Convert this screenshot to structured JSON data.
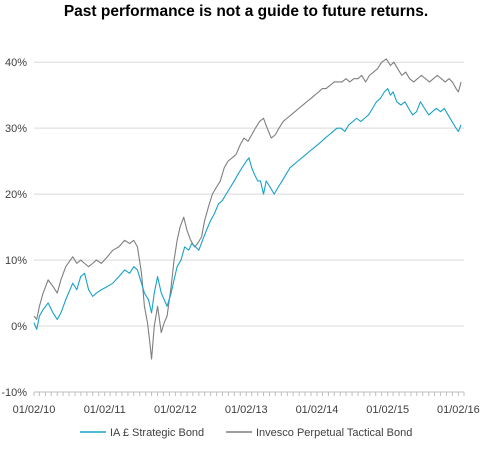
{
  "chart_data": {
    "type": "line",
    "title": "Past performance is not a guide to future returns.",
    "xlabel": "",
    "ylabel": "",
    "y_unit": "%",
    "ylim": [
      -10,
      42
    ],
    "xlim": [
      "2010-02-01",
      "2016-03-01"
    ],
    "y_ticks": [
      "-10%",
      "0%",
      "10%",
      "20%",
      "30%",
      "40%"
    ],
    "x_ticks": [
      "01/02/10",
      "01/02/11",
      "01/02/12",
      "01/02/13",
      "01/02/14",
      "01/02/15",
      "01/02/16"
    ],
    "grid": "horizontal",
    "legend_position": "bottom",
    "series": [
      {
        "name": "IA £ Strategic Bond",
        "color": "#17a2c8",
        "points": [
          [
            "2010-02-01",
            0.5
          ],
          [
            "2010-02-15",
            -0.5
          ],
          [
            "2010-03-01",
            1.5
          ],
          [
            "2010-03-20",
            2.5
          ],
          [
            "2010-04-15",
            3.5
          ],
          [
            "2010-05-10",
            2.0
          ],
          [
            "2010-06-01",
            1.0
          ],
          [
            "2010-06-20",
            2.0
          ],
          [
            "2010-07-15",
            4.0
          ],
          [
            "2010-08-20",
            6.5
          ],
          [
            "2010-09-10",
            5.5
          ],
          [
            "2010-09-30",
            7.5
          ],
          [
            "2010-10-20",
            8.0
          ],
          [
            "2010-11-10",
            5.5
          ],
          [
            "2010-12-01",
            4.5
          ],
          [
            "2010-12-20",
            5.0
          ],
          [
            "2011-01-15",
            5.5
          ],
          [
            "2011-02-15",
            6.0
          ],
          [
            "2011-03-15",
            6.5
          ],
          [
            "2011-04-15",
            7.5
          ],
          [
            "2011-05-15",
            8.5
          ],
          [
            "2011-06-10",
            8.0
          ],
          [
            "2011-07-01",
            9.0
          ],
          [
            "2011-07-20",
            8.5
          ],
          [
            "2011-08-10",
            6.5
          ],
          [
            "2011-08-25",
            5.0
          ],
          [
            "2011-09-15",
            4.0
          ],
          [
            "2011-10-01",
            2.0
          ],
          [
            "2011-10-15",
            5.0
          ],
          [
            "2011-11-01",
            7.5
          ],
          [
            "2011-11-20",
            5.0
          ],
          [
            "2011-12-05",
            4.0
          ],
          [
            "2011-12-20",
            3.0
          ],
          [
            "2012-01-10",
            5.0
          ],
          [
            "2012-01-25",
            7.0
          ],
          [
            "2012-02-10",
            9.0
          ],
          [
            "2012-03-01",
            10.0
          ],
          [
            "2012-03-20",
            12.0
          ],
          [
            "2012-04-10",
            11.5
          ],
          [
            "2012-04-25",
            12.5
          ],
          [
            "2012-05-15",
            12.0
          ],
          [
            "2012-06-01",
            11.5
          ],
          [
            "2012-06-20",
            13.0
          ],
          [
            "2012-07-10",
            14.5
          ],
          [
            "2012-08-01",
            16.0
          ],
          [
            "2012-08-20",
            17.0
          ],
          [
            "2012-09-10",
            18.5
          ],
          [
            "2012-09-30",
            19.0
          ],
          [
            "2012-10-20",
            20.0
          ],
          [
            "2012-11-10",
            21.0
          ],
          [
            "2012-12-01",
            22.0
          ],
          [
            "2012-12-20",
            23.0
          ],
          [
            "2013-01-10",
            24.0
          ],
          [
            "2013-02-01",
            25.0
          ],
          [
            "2013-02-15",
            25.5
          ],
          [
            "2013-03-01",
            24.0
          ],
          [
            "2013-03-15",
            23.0
          ],
          [
            "2013-04-01",
            22.0
          ],
          [
            "2013-04-15",
            22.0
          ],
          [
            "2013-05-01",
            20.0
          ],
          [
            "2013-05-15",
            22.0
          ],
          [
            "2013-06-05",
            21.0
          ],
          [
            "2013-06-25",
            20.0
          ],
          [
            "2013-07-15",
            21.0
          ],
          [
            "2013-08-05",
            22.0
          ],
          [
            "2013-08-25",
            23.0
          ],
          [
            "2013-09-15",
            24.0
          ],
          [
            "2013-10-05",
            24.5
          ],
          [
            "2013-10-25",
            25.0
          ],
          [
            "2013-11-15",
            25.5
          ],
          [
            "2013-12-05",
            26.0
          ],
          [
            "2013-12-25",
            26.5
          ],
          [
            "2014-01-15",
            27.0
          ],
          [
            "2014-02-05",
            27.5
          ],
          [
            "2014-02-25",
            28.0
          ],
          [
            "2014-03-15",
            28.5
          ],
          [
            "2014-04-05",
            29.0
          ],
          [
            "2014-04-25",
            29.5
          ],
          [
            "2014-05-15",
            30.0
          ],
          [
            "2014-06-05",
            30.0
          ],
          [
            "2014-06-25",
            29.5
          ],
          [
            "2014-07-15",
            30.5
          ],
          [
            "2014-08-05",
            31.0
          ],
          [
            "2014-08-25",
            31.5
          ],
          [
            "2014-09-15",
            31.0
          ],
          [
            "2014-10-05",
            31.5
          ],
          [
            "2014-10-25",
            32.0
          ],
          [
            "2014-11-15",
            33.0
          ],
          [
            "2014-12-05",
            34.0
          ],
          [
            "2014-12-25",
            34.5
          ],
          [
            "2015-01-15",
            35.5
          ],
          [
            "2015-02-01",
            36.0
          ],
          [
            "2015-02-15",
            35.0
          ],
          [
            "2015-03-01",
            35.5
          ],
          [
            "2015-03-20",
            34.0
          ],
          [
            "2015-04-10",
            33.5
          ],
          [
            "2015-05-01",
            34.0
          ],
          [
            "2015-05-20",
            33.0
          ],
          [
            "2015-06-10",
            32.0
          ],
          [
            "2015-06-30",
            32.5
          ],
          [
            "2015-07-20",
            34.0
          ],
          [
            "2015-08-10",
            33.0
          ],
          [
            "2015-09-01",
            32.0
          ],
          [
            "2015-09-20",
            32.5
          ],
          [
            "2015-10-10",
            33.0
          ],
          [
            "2015-11-01",
            32.5
          ],
          [
            "2015-11-20",
            33.0
          ],
          [
            "2015-12-10",
            32.0
          ],
          [
            "2015-12-30",
            31.0
          ],
          [
            "2016-01-20",
            30.0
          ],
          [
            "2016-02-01",
            29.5
          ],
          [
            "2016-02-15",
            30.5
          ]
        ]
      },
      {
        "name": "Invesco Perpetual Tactical Bond",
        "color": "#7f7f7f",
        "points": [
          [
            "2010-02-01",
            1.5
          ],
          [
            "2010-02-15",
            1.0
          ],
          [
            "2010-03-01",
            3.0
          ],
          [
            "2010-03-20",
            5.0
          ],
          [
            "2010-04-15",
            7.0
          ],
          [
            "2010-05-10",
            6.0
          ],
          [
            "2010-06-01",
            5.0
          ],
          [
            "2010-06-20",
            7.0
          ],
          [
            "2010-07-15",
            9.0
          ],
          [
            "2010-08-20",
            10.5
          ],
          [
            "2010-09-10",
            9.5
          ],
          [
            "2010-09-30",
            10.0
          ],
          [
            "2010-10-20",
            9.5
          ],
          [
            "2010-11-10",
            9.0
          ],
          [
            "2010-12-01",
            9.5
          ],
          [
            "2010-12-20",
            10.0
          ],
          [
            "2011-01-15",
            9.5
          ],
          [
            "2011-02-15",
            10.5
          ],
          [
            "2011-03-15",
            11.5
          ],
          [
            "2011-04-15",
            12.0
          ],
          [
            "2011-05-15",
            13.0
          ],
          [
            "2011-06-10",
            12.5
          ],
          [
            "2011-07-01",
            13.0
          ],
          [
            "2011-07-20",
            12.0
          ],
          [
            "2011-08-10",
            8.0
          ],
          [
            "2011-08-25",
            3.0
          ],
          [
            "2011-09-10",
            0.5
          ],
          [
            "2011-09-20",
            -2.0
          ],
          [
            "2011-10-01",
            -5.0
          ],
          [
            "2011-10-15",
            0.0
          ],
          [
            "2011-11-01",
            3.0
          ],
          [
            "2011-11-20",
            -1.0
          ],
          [
            "2011-12-05",
            0.5
          ],
          [
            "2011-12-20",
            1.5
          ],
          [
            "2012-01-10",
            6.0
          ],
          [
            "2012-01-25",
            10.0
          ],
          [
            "2012-02-10",
            13.0
          ],
          [
            "2012-02-25",
            15.0
          ],
          [
            "2012-03-15",
            16.5
          ],
          [
            "2012-04-01",
            14.5
          ],
          [
            "2012-04-20",
            13.0
          ],
          [
            "2012-05-10",
            12.0
          ],
          [
            "2012-05-25",
            12.5
          ],
          [
            "2012-06-15",
            13.5
          ],
          [
            "2012-07-01",
            16.0
          ],
          [
            "2012-07-20",
            18.0
          ],
          [
            "2012-08-10",
            20.0
          ],
          [
            "2012-08-30",
            21.0
          ],
          [
            "2012-09-20",
            22.0
          ],
          [
            "2012-10-10",
            24.0
          ],
          [
            "2012-10-30",
            25.0
          ],
          [
            "2012-11-20",
            25.5
          ],
          [
            "2012-12-10",
            26.0
          ],
          [
            "2013-01-01",
            27.5
          ],
          [
            "2013-01-20",
            28.5
          ],
          [
            "2013-02-10",
            28.0
          ],
          [
            "2013-03-01",
            29.0
          ],
          [
            "2013-03-20",
            30.0
          ],
          [
            "2013-04-10",
            31.0
          ],
          [
            "2013-05-01",
            31.5
          ],
          [
            "2013-05-20",
            30.0
          ],
          [
            "2013-06-10",
            28.5
          ],
          [
            "2013-07-01",
            29.0
          ],
          [
            "2013-07-20",
            30.0
          ],
          [
            "2013-08-10",
            31.0
          ],
          [
            "2013-08-30",
            31.5
          ],
          [
            "2013-09-20",
            32.0
          ],
          [
            "2013-10-10",
            32.5
          ],
          [
            "2013-10-30",
            33.0
          ],
          [
            "2013-11-20",
            33.5
          ],
          [
            "2013-12-10",
            34.0
          ],
          [
            "2014-01-01",
            34.5
          ],
          [
            "2014-01-20",
            35.0
          ],
          [
            "2014-02-10",
            35.5
          ],
          [
            "2014-03-01",
            36.0
          ],
          [
            "2014-03-20",
            36.0
          ],
          [
            "2014-04-10",
            36.5
          ],
          [
            "2014-05-01",
            37.0
          ],
          [
            "2014-05-20",
            37.0
          ],
          [
            "2014-06-10",
            37.0
          ],
          [
            "2014-07-01",
            37.5
          ],
          [
            "2014-07-20",
            37.0
          ],
          [
            "2014-08-10",
            37.5
          ],
          [
            "2014-09-01",
            37.5
          ],
          [
            "2014-09-20",
            38.0
          ],
          [
            "2014-10-10",
            37.0
          ],
          [
            "2014-10-30",
            38.0
          ],
          [
            "2014-11-20",
            38.5
          ],
          [
            "2014-12-10",
            39.0
          ],
          [
            "2015-01-01",
            40.0
          ],
          [
            "2015-01-25",
            40.5
          ],
          [
            "2015-02-15",
            39.5
          ],
          [
            "2015-03-05",
            40.0
          ],
          [
            "2015-03-25",
            39.0
          ],
          [
            "2015-04-15",
            38.0
          ],
          [
            "2015-05-05",
            38.5
          ],
          [
            "2015-05-25",
            37.5
          ],
          [
            "2015-06-15",
            37.0
          ],
          [
            "2015-07-05",
            37.5
          ],
          [
            "2015-07-25",
            38.0
          ],
          [
            "2015-08-15",
            37.5
          ],
          [
            "2015-09-05",
            37.0
          ],
          [
            "2015-09-25",
            37.5
          ],
          [
            "2015-10-15",
            38.0
          ],
          [
            "2015-11-05",
            37.5
          ],
          [
            "2015-11-25",
            37.0
          ],
          [
            "2015-12-15",
            37.5
          ],
          [
            "2016-01-01",
            37.0
          ],
          [
            "2016-01-20",
            36.0
          ],
          [
            "2016-02-01",
            35.5
          ],
          [
            "2016-02-15",
            37.0
          ]
        ]
      }
    ]
  }
}
